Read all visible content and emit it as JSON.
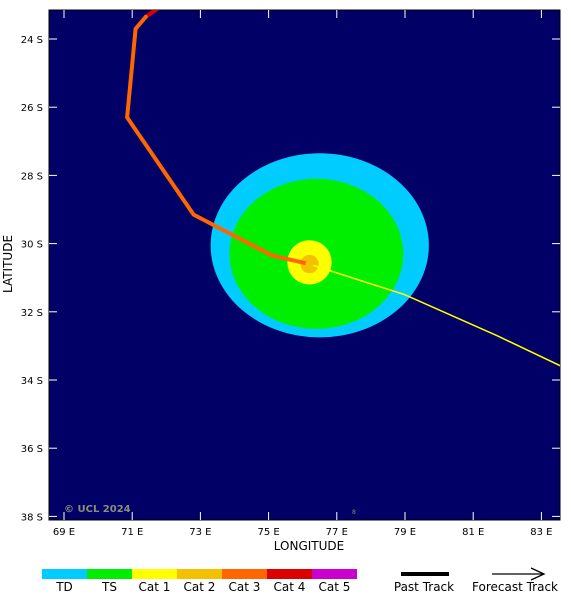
{
  "map": {
    "background_color": "#000066",
    "copyright": "© UCL 2024",
    "x_axis": {
      "title": "LONGITUDE",
      "ticks": [
        {
          "value": 69,
          "label": "69 E"
        },
        {
          "value": 71,
          "label": "71 E"
        },
        {
          "value": 73,
          "label": "73 E"
        },
        {
          "value": 75,
          "label": "75 E"
        },
        {
          "value": 77,
          "label": "77 E"
        },
        {
          "value": 79,
          "label": "79 E"
        },
        {
          "value": 81,
          "label": "81 E"
        },
        {
          "value": 83,
          "label": "83 E"
        }
      ]
    },
    "y_axis": {
      "title": "LATITUDE",
      "ticks": [
        {
          "value": -24,
          "label": "24 S"
        },
        {
          "value": -26,
          "label": "26 S"
        },
        {
          "value": -28,
          "label": "28 S"
        },
        {
          "value": -30,
          "label": "30 S"
        },
        {
          "value": -32,
          "label": "32 S"
        },
        {
          "value": -34,
          "label": "34 S"
        },
        {
          "value": -36,
          "label": "36 S"
        },
        {
          "value": -38,
          "label": "38 S"
        }
      ]
    },
    "wind_field": [
      {
        "category": "TD",
        "color": "#00ccff",
        "center_lon": 76.5,
        "center_lat": -30.05,
        "radius_lon": 3.2,
        "radius_lat": 2.7
      },
      {
        "category": "TS",
        "color": "#00ee00",
        "center_lon": 76.4,
        "center_lat": -30.3,
        "radius_lon": 2.55,
        "radius_lat": 2.2
      },
      {
        "category": "Cat 1",
        "color": "#ffff00",
        "center_lon": 76.2,
        "center_lat": -30.55,
        "radius_lon": 0.65,
        "radius_lat": 0.65
      },
      {
        "category": "Cat 2",
        "color": "#f2c200",
        "center_lon": 76.2,
        "center_lat": -30.6,
        "radius_lon": 0.27,
        "radius_lat": 0.27
      }
    ],
    "past_track": {
      "segments": [
        {
          "color": "#dd0000",
          "points": [
            [
              71.9,
              -23.0
            ],
            [
              71.4,
              -23.35
            ]
          ]
        },
        {
          "color": "#ff6600",
          "points": [
            [
              71.4,
              -23.35
            ],
            [
              71.1,
              -23.7
            ],
            [
              70.85,
              -26.3
            ],
            [
              72.8,
              -29.15
            ],
            [
              75.1,
              -30.35
            ],
            [
              76.2,
              -30.6
            ]
          ]
        }
      ]
    },
    "forecast_track": {
      "color": "#ffff00",
      "points": [
        [
          76.2,
          -30.6
        ],
        [
          79.0,
          -31.5
        ],
        [
          81.7,
          -32.7
        ],
        [
          83.8,
          -33.7
        ]
      ]
    }
  },
  "legend": {
    "categories": [
      {
        "label": "TD",
        "color": "#00ccff"
      },
      {
        "label": "TS",
        "color": "#00ee00"
      },
      {
        "label": "Cat 1",
        "color": "#ffff00"
      },
      {
        "label": "Cat 2",
        "color": "#f2c200"
      },
      {
        "label": "Cat 3",
        "color": "#ff6600"
      },
      {
        "label": "Cat 4",
        "color": "#dd0000"
      },
      {
        "label": "Cat 5",
        "color": "#cc00cc"
      }
    ],
    "past_track_label": "Past Track",
    "forecast_track_label": "Forecast Track"
  }
}
